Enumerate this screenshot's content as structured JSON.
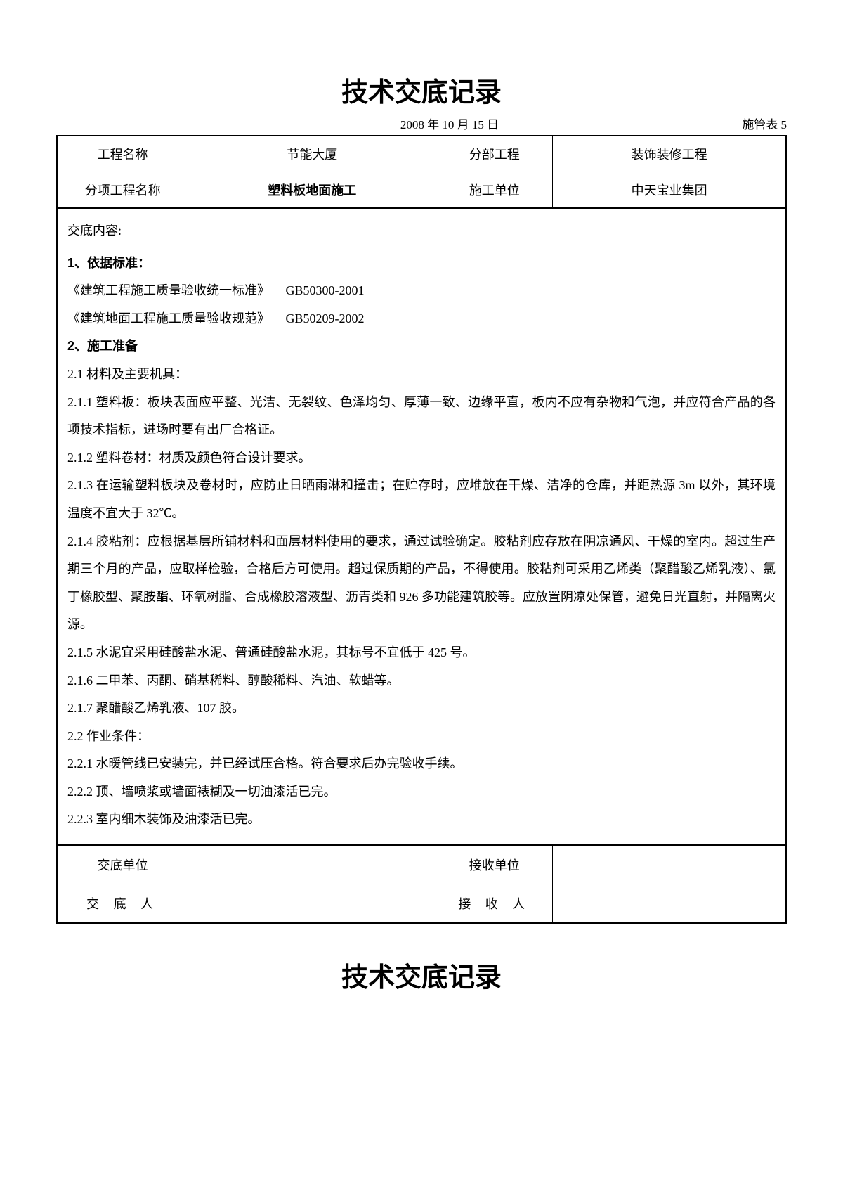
{
  "title": "技术交底记录",
  "date": "2008 年 10 月 15 日",
  "form_label": "施管表 5",
  "header_table": {
    "col_widths": [
      "18%",
      "34%",
      "16%",
      "32%"
    ],
    "rows": [
      {
        "c1": "工程名称",
        "c2": "节能大厦",
        "c3": "分部工程",
        "c4": "装饰装修工程",
        "bold2": false
      },
      {
        "c1": "分项工程名称",
        "c2": "塑料板地面施工",
        "c3": "施工单位",
        "c4": "中天宝业集团",
        "bold2": true
      }
    ]
  },
  "content": {
    "label": "交底内容:",
    "s1": {
      "heading": "1、依据标准：",
      "lines": [
        {
          "t": "《建筑工程施工质量验收统一标准》",
          "code": "GB50300-2001"
        },
        {
          "t": "《建筑地面工程施工质量验收规范》",
          "code": "GB50209-2002"
        }
      ]
    },
    "s2": {
      "heading": "2、施工准备",
      "p21": "2.1 材料及主要机具：",
      "p211": "2.1.1 塑料板：板块表面应平整、光洁、无裂纹、色泽均匀、厚薄一致、边缘平直，板内不应有杂物和气泡，并应符合产品的各项技术指标，进场时要有出厂合格证。",
      "p212": "2.1.2 塑料卷材：材质及颜色符合设计要求。",
      "p213": "2.1.3 在运输塑料板块及卷材时，应防止日晒雨淋和撞击；在贮存时，应堆放在干燥、洁净的仓库，并距热源 3m 以外，其环境温度不宜大于 32℃。",
      "p214": "2.1.4 胶粘剂：应根据基层所铺材料和面层材料使用的要求，通过试验确定。胶粘剂应存放在阴凉通风、干燥的室内。超过生产期三个月的产品，应取样检验，合格后方可使用。超过保质期的产品，不得使用。胶粘剂可采用乙烯类（聚醋酸乙烯乳液）、氯丁橡胶型、聚胺酯、环氧树脂、合成橡胶溶液型、沥青类和 926 多功能建筑胶等。应放置阴凉处保管，避免日光直射，并隔离火源。",
      "p215": "2.1.5 水泥宜采用硅酸盐水泥、普通硅酸盐水泥，其标号不宜低于 425 号。",
      "p216": "2.1.6 二甲苯、丙酮、硝基稀料、醇酸稀料、汽油、软蜡等。",
      "p217": "2.1.7 聚醋酸乙烯乳液、107 胶。",
      "p22": "2.2 作业条件：",
      "p221": "2.2.1 水暖管线已安装完，并已经试压合格。符合要求后办完验收手续。",
      "p222": "2.2.2 顶、墙喷浆或墙面裱糊及一切油漆活已完。",
      "p223": "2.2.3 室内细木装饰及油漆活已完。"
    }
  },
  "footer_table": {
    "rows": [
      {
        "c1": "交底单位",
        "c2": "",
        "c3": "接收单位",
        "c4": ""
      },
      {
        "c1": "交 底 人",
        "c2": "",
        "c3": "接 收 人",
        "c4": ""
      }
    ],
    "col_widths": [
      "18%",
      "34%",
      "16%",
      "32%"
    ]
  },
  "title2": "技术交底记录"
}
